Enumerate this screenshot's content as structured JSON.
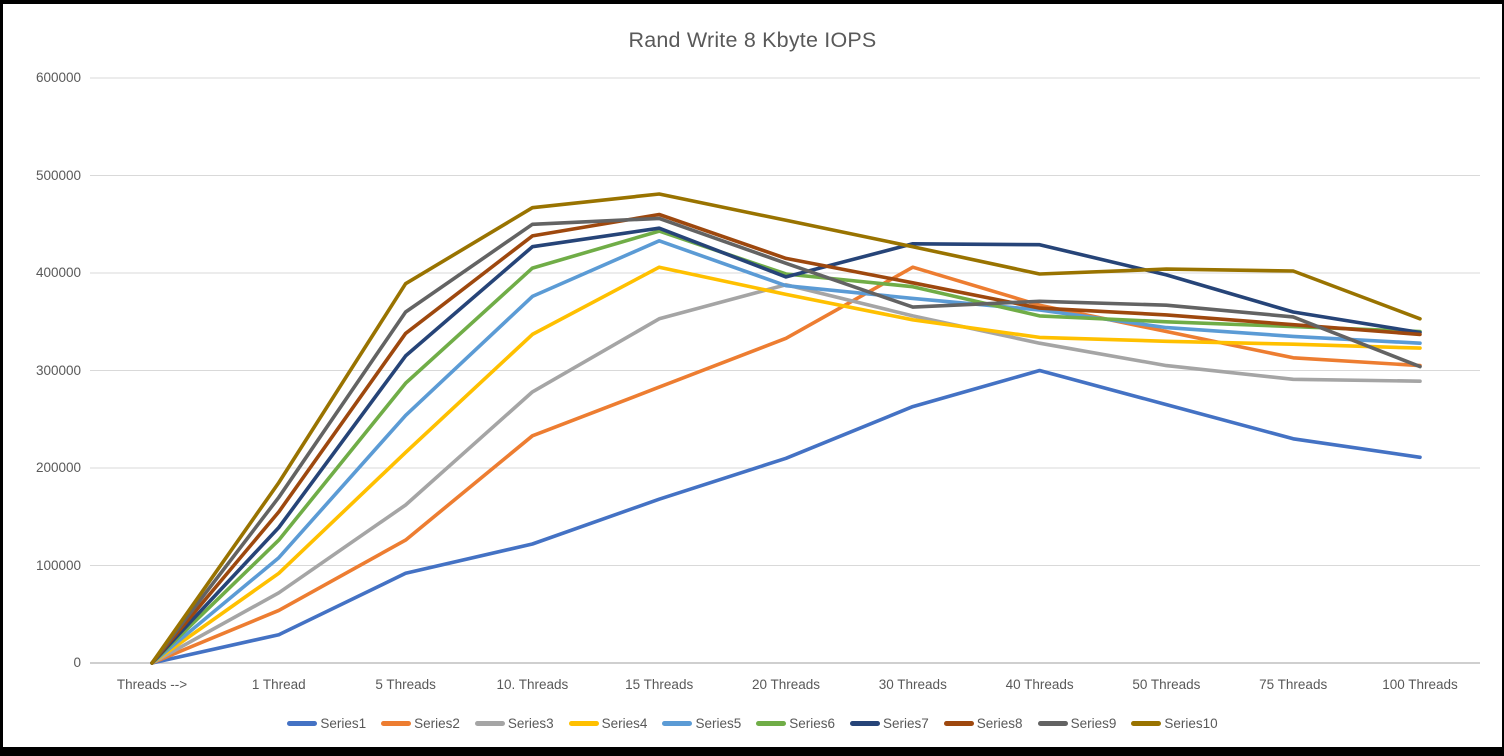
{
  "chart_data": {
    "type": "line",
    "title": "Rand Write 8 Kbyte IOPS",
    "categories": [
      "Threads -->",
      "1 Thread",
      "5 Threads",
      "10. Threads",
      "15 Threads",
      "20 Threads",
      "30 Threads",
      "40 Threads",
      "50 Threads",
      "75 Threads",
      "100 Threads"
    ],
    "series": [
      {
        "name": "Series1",
        "color": "#4472C4",
        "values": [
          0,
          29000,
          92000,
          122000,
          168000,
          210000,
          263000,
          300000,
          265000,
          230000,
          211000
        ]
      },
      {
        "name": "Series2",
        "color": "#ED7D31",
        "values": [
          0,
          54000,
          126000,
          233000,
          283000,
          333000,
          406000,
          367000,
          340000,
          313000,
          305000
        ]
      },
      {
        "name": "Series3",
        "color": "#A5A5A5",
        "values": [
          0,
          72000,
          162000,
          278000,
          353000,
          388000,
          356000,
          328000,
          305000,
          291000,
          289000
        ]
      },
      {
        "name": "Series4",
        "color": "#FFC000",
        "values": [
          0,
          92000,
          216000,
          337000,
          406000,
          378000,
          352000,
          334000,
          330000,
          327000,
          323000
        ]
      },
      {
        "name": "Series5",
        "color": "#5B9BD5",
        "values": [
          0,
          108000,
          254000,
          376000,
          433000,
          387000,
          374000,
          362000,
          344000,
          335000,
          328000
        ]
      },
      {
        "name": "Series6",
        "color": "#70AD47",
        "values": [
          0,
          126000,
          287000,
          405000,
          443000,
          399000,
          386000,
          356000,
          350000,
          345000,
          340000
        ]
      },
      {
        "name": "Series7",
        "color": "#264478",
        "values": [
          0,
          139000,
          315000,
          427000,
          446000,
          396000,
          430000,
          429000,
          398000,
          360000,
          339000
        ]
      },
      {
        "name": "Series8",
        "color": "#9E480E",
        "values": [
          0,
          155000,
          338000,
          438000,
          460000,
          415000,
          390000,
          364000,
          357000,
          347000,
          337000
        ]
      },
      {
        "name": "Series9",
        "color": "#636363",
        "values": [
          0,
          170000,
          360000,
          450000,
          456000,
          410000,
          365000,
          371000,
          367000,
          355000,
          304000
        ]
      },
      {
        "name": "Series10",
        "color": "#997300",
        "values": [
          0,
          185000,
          389000,
          467000,
          481000,
          454000,
          427000,
          399000,
          404000,
          402000,
          353000
        ]
      }
    ],
    "ylim": [
      0,
      600000
    ],
    "y_tick_step": 100000,
    "y_tick_labels": [
      "0",
      "100000",
      "200000",
      "300000",
      "400000",
      "500000",
      "600000"
    ],
    "grid": true,
    "legend_position": "bottom"
  },
  "colors": {
    "text": "#595959",
    "gridline": "#D9D9D9",
    "axis_line": "#BFBFBF",
    "background": "#FFFFFF",
    "frame": "#000000"
  }
}
